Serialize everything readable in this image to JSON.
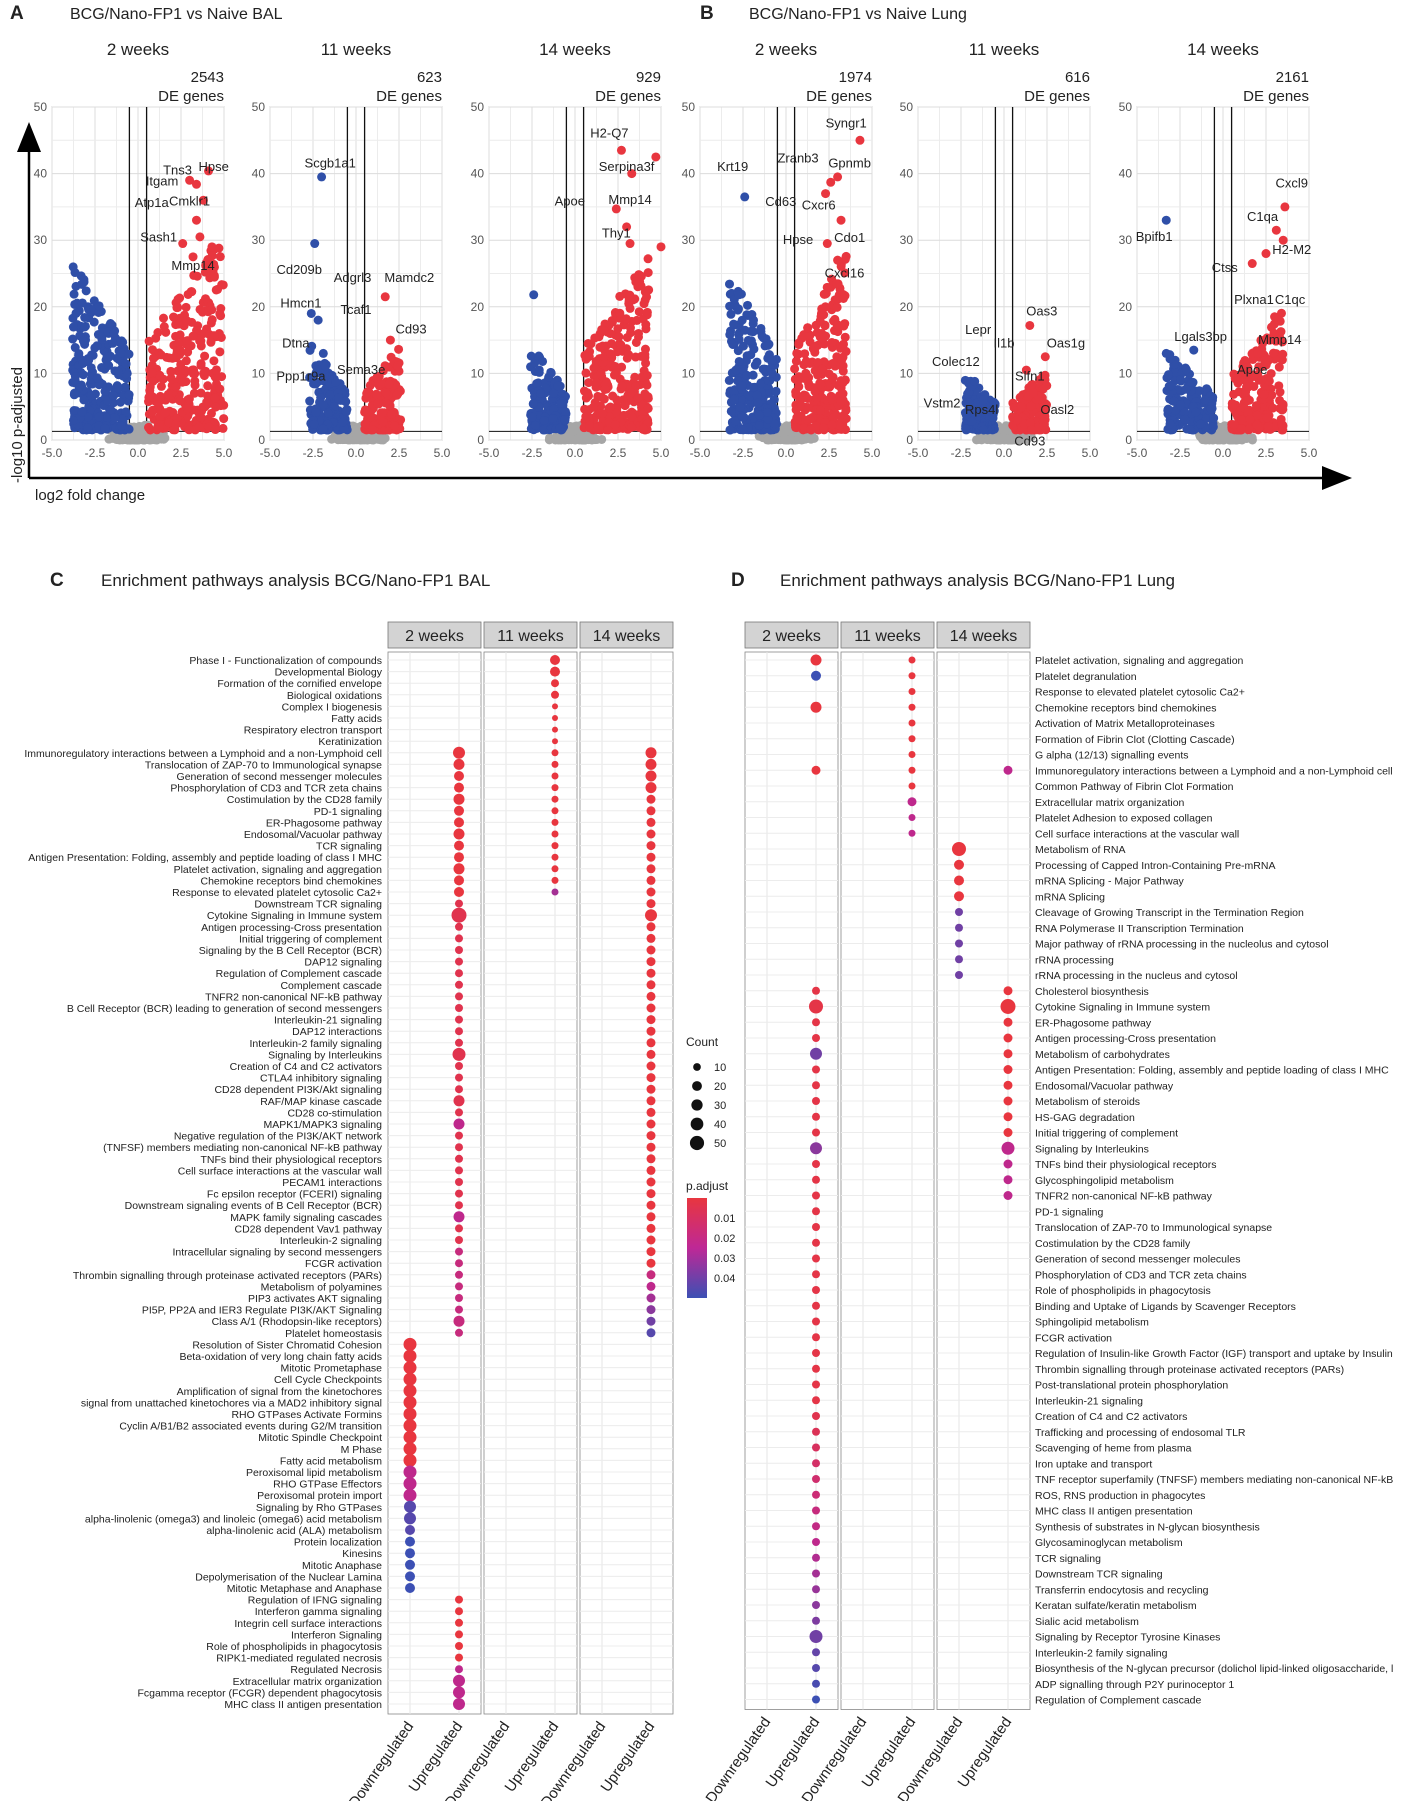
{
  "panels": {
    "A": {
      "letter": "A",
      "title": "BCG/Nano-FP1 vs Naive BAL"
    },
    "B": {
      "letter": "B",
      "title": "BCG/Nano-FP1 vs Naive Lung"
    },
    "C": {
      "letter": "C",
      "title": "Enrichment pathways analysis BCG/Nano-FP1 BAL"
    },
    "D": {
      "letter": "D",
      "title": "Enrichment pathways analysis BCG/Nano-FP1 Lung"
    }
  },
  "axes": {
    "x_label": "log2 fold change",
    "y_label": "-log10 p-adjusted",
    "de_suffix": "DE genes"
  },
  "colors": {
    "up": "#e8363f",
    "down": "#2f4fa8",
    "ns": "#a6a6a6",
    "strip": "#d3d3d3"
  },
  "chart_data": [
    {
      "type": "scatter",
      "id": "A1",
      "group": "A",
      "facet": "2 weeks",
      "de": "2543",
      "xlim": [
        -5,
        5
      ],
      "ylim": [
        0,
        50
      ],
      "xticks": [
        "-5.0",
        "-2.5",
        "0.0",
        "2.5",
        "5.0"
      ],
      "yticks": [
        "0",
        "10",
        "20",
        "30",
        "40",
        "50"
      ],
      "labels": [
        {
          "t": "Tns3",
          "x": 2.3,
          "y": 40.5
        },
        {
          "t": "Hpse",
          "x": 4.4,
          "y": 41
        },
        {
          "t": "Itgam",
          "x": 1.4,
          "y": 38.8
        },
        {
          "t": "Atp1a",
          "x": 0.8,
          "y": 35.6
        },
        {
          "t": "Cmklr1",
          "x": 3.0,
          "y": 35.8
        },
        {
          "t": "Sash1",
          "x": 1.2,
          "y": 30.4
        },
        {
          "t": "Mmp14",
          "x": 3.2,
          "y": 26.1
        }
      ],
      "pts": [
        [
          3.0,
          39
        ],
        [
          3.4,
          38.4
        ],
        [
          4.1,
          40.4
        ],
        [
          3.8,
          36
        ],
        [
          3.4,
          33
        ],
        [
          3.6,
          30.5
        ],
        [
          4.3,
          29
        ],
        [
          3.2,
          27.5
        ],
        [
          2.6,
          29.5
        ]
      ],
      "up": {
        "xr": [
          0.6,
          5
        ],
        "ymax": 30
      },
      "down": {
        "xr": [
          -3.8,
          -0.5
        ],
        "ymax": 26
      }
    },
    {
      "type": "scatter",
      "id": "A2",
      "group": "A",
      "facet": "11 weeks",
      "de": "623",
      "xlim": [
        -5,
        5
      ],
      "ylim": [
        0,
        50
      ],
      "xticks": [
        "-5.0",
        "-2.5",
        "0.0",
        "2.5",
        "5.0"
      ],
      "yticks": [
        "0",
        "10",
        "20",
        "30",
        "40",
        "50"
      ],
      "labels": [
        {
          "t": "Scgb1a1",
          "x": -1.5,
          "y": 41.5
        },
        {
          "t": "Cd209b",
          "x": -3.3,
          "y": 25.5
        },
        {
          "t": "Adgrl3",
          "x": -0.2,
          "y": 24.3
        },
        {
          "t": "Mamdc2",
          "x": 3.1,
          "y": 24.3
        },
        {
          "t": "Hmcn1",
          "x": -3.2,
          "y": 20.5
        },
        {
          "t": "Tcaf1",
          "x": 0.0,
          "y": 19.5
        },
        {
          "t": "Cd93",
          "x": 3.2,
          "y": 16.6
        },
        {
          "t": "Dtna",
          "x": -3.5,
          "y": 14.5
        },
        {
          "t": "Sema3e",
          "x": 0.3,
          "y": 10.5
        },
        {
          "t": "Ppp1r9a",
          "x": -3.2,
          "y": 9.5
        }
      ],
      "pts": [
        [
          -2.0,
          39.5
        ],
        [
          -2.4,
          29.5
        ],
        [
          1.7,
          21.5
        ],
        [
          -2.6,
          19
        ],
        [
          2.0,
          15
        ],
        [
          -2.2,
          18
        ],
        [
          -1.9,
          13
        ]
      ],
      "up": {
        "xr": [
          0.5,
          2.6
        ],
        "ymax": 13
      },
      "down": {
        "xr": [
          -2.7,
          -0.5
        ],
        "ymax": 13
      }
    },
    {
      "type": "scatter",
      "id": "A3",
      "group": "A",
      "facet": "14 weeks",
      "de": "929",
      "xlim": [
        -5,
        5
      ],
      "ylim": [
        0,
        50
      ],
      "xticks": [
        "-5.0",
        "-2.5",
        "0.0",
        "2.5",
        "5.0"
      ],
      "yticks": [
        "0",
        "10",
        "20",
        "30",
        "40",
        "50"
      ],
      "labels": [
        {
          "t": "H2-Q7",
          "x": 2.0,
          "y": 46
        },
        {
          "t": "Serpina3f",
          "x": 3.0,
          "y": 41
        },
        {
          "t": "Apoe",
          "x": -0.3,
          "y": 35.8
        },
        {
          "t": "Mmp14",
          "x": 3.2,
          "y": 36
        },
        {
          "t": "Thy1",
          "x": 2.4,
          "y": 31
        }
      ],
      "pts": [
        [
          2.7,
          43.5
        ],
        [
          4.7,
          42.5
        ],
        [
          3.3,
          40
        ],
        [
          2.4,
          34.7
        ],
        [
          3.0,
          32
        ],
        [
          3.2,
          29.5
        ],
        [
          5.0,
          29
        ],
        [
          -2.4,
          21.8
        ]
      ],
      "up": {
        "xr": [
          0.5,
          4.3
        ],
        "ymax": 27
      },
      "down": {
        "xr": [
          -2.6,
          -0.5
        ],
        "ymax": 13
      }
    },
    {
      "type": "scatter",
      "id": "B1",
      "group": "B",
      "facet": "2 weeks",
      "de": "1974",
      "xlim": [
        -5,
        5
      ],
      "ylim": [
        0,
        50
      ],
      "xticks": [
        "-5.0",
        "-2.5",
        "0.0",
        "2.5",
        "5.0"
      ],
      "yticks": [
        "0",
        "10",
        "20",
        "30",
        "40",
        "50"
      ],
      "labels": [
        {
          "t": "Syngr1",
          "x": 3.5,
          "y": 47.5
        },
        {
          "t": "Krt19",
          "x": -3.1,
          "y": 41
        },
        {
          "t": "Zranb3",
          "x": 0.7,
          "y": 42.3
        },
        {
          "t": "Gpnmb",
          "x": 3.7,
          "y": 41.5
        },
        {
          "t": "Cd63",
          "x": -0.3,
          "y": 35.7
        },
        {
          "t": "Cxcr6",
          "x": 1.9,
          "y": 35.2
        },
        {
          "t": "Hpse",
          "x": 0.7,
          "y": 30
        },
        {
          "t": "Cdo1",
          "x": 3.7,
          "y": 30.3
        },
        {
          "t": "Cxcl16",
          "x": 3.4,
          "y": 25
        }
      ],
      "pts": [
        [
          4.3,
          45
        ],
        [
          -2.4,
          36.5
        ],
        [
          2.6,
          38.7
        ],
        [
          3.0,
          39.5
        ],
        [
          2.3,
          37
        ],
        [
          3.2,
          33
        ],
        [
          2.4,
          29.5
        ],
        [
          3.0,
          27
        ]
      ],
      "up": {
        "xr": [
          0.5,
          3.5
        ],
        "ymax": 27
      },
      "down": {
        "xr": [
          -3.3,
          -0.5
        ],
        "ymax": 24
      }
    },
    {
      "type": "scatter",
      "id": "B2",
      "group": "B",
      "facet": "11 weeks",
      "de": "616",
      "xlim": [
        -5,
        5
      ],
      "ylim": [
        0,
        50
      ],
      "xticks": [
        "-5.0",
        "-2.5",
        "0.0",
        "2.5",
        "5.0"
      ],
      "yticks": [
        "0",
        "10",
        "20",
        "30",
        "40",
        "50"
      ],
      "labels": [
        {
          "t": "Oas3",
          "x": 2.2,
          "y": 19.3
        },
        {
          "t": "Lepr",
          "x": -1.5,
          "y": 16.5
        },
        {
          "t": "Il1b",
          "x": 0.0,
          "y": 14.5
        },
        {
          "t": "Oas1g",
          "x": 3.6,
          "y": 14.5
        },
        {
          "t": "Colec12",
          "x": -2.8,
          "y": 11.7
        },
        {
          "t": "Slfn1",
          "x": 1.5,
          "y": 9.5
        },
        {
          "t": "Vstm2",
          "x": -3.6,
          "y": 5.5
        },
        {
          "t": "Rps4l",
          "x": -1.3,
          "y": 4.5
        },
        {
          "t": "Oasl2",
          "x": 3.1,
          "y": 4.5
        },
        {
          "t": "Cd93",
          "x": 1.5,
          "y": -0.2
        }
      ],
      "pts": [
        [
          1.5,
          17.2
        ],
        [
          2.4,
          12.5
        ],
        [
          1.3,
          10.5
        ],
        [
          -1.7,
          8.8
        ],
        [
          -1.2,
          6
        ],
        [
          2.3,
          5
        ],
        [
          -1.7,
          4
        ],
        [
          1.6,
          1.5
        ]
      ],
      "up": {
        "xr": [
          0.5,
          2.5
        ],
        "ymax": 9
      },
      "down": {
        "xr": [
          -2.3,
          -0.5
        ],
        "ymax": 9
      }
    },
    {
      "type": "scatter",
      "id": "B3",
      "group": "B",
      "facet": "14 weeks",
      "de": "2161",
      "xlim": [
        -5,
        5
      ],
      "ylim": [
        0,
        50
      ],
      "xticks": [
        "-5.0",
        "-2.5",
        "0.0",
        "2.5",
        "5.0"
      ],
      "yticks": [
        "0",
        "10",
        "20",
        "30",
        "40",
        "50"
      ],
      "labels": [
        {
          "t": "Cxcl9",
          "x": 4.0,
          "y": 38.5
        },
        {
          "t": "Bpifb1",
          "x": -4.0,
          "y": 30.5
        },
        {
          "t": "C1qa",
          "x": 2.3,
          "y": 33.5
        },
        {
          "t": "H2-M2",
          "x": 4.0,
          "y": 28.5
        },
        {
          "t": "Ctss",
          "x": 0.1,
          "y": 25.8
        },
        {
          "t": "Plxna1",
          "x": 1.8,
          "y": 21
        },
        {
          "t": "C1qc",
          "x": 3.9,
          "y": 21
        },
        {
          "t": "Lgals3bp",
          "x": -1.3,
          "y": 15.5
        },
        {
          "t": "Mmp14",
          "x": 3.3,
          "y": 15
        },
        {
          "t": "Apoe",
          "x": 1.7,
          "y": 10.5
        }
      ],
      "pts": [
        [
          3.6,
          35
        ],
        [
          -3.3,
          33
        ],
        [
          3.1,
          31.5
        ],
        [
          3.5,
          30
        ],
        [
          1.7,
          26.5
        ],
        [
          2.5,
          28
        ],
        [
          -3.3,
          13
        ],
        [
          -1.7,
          13.5
        ],
        [
          3.0,
          18.5
        ],
        [
          2.3,
          14.5
        ],
        [
          2.0,
          13
        ]
      ],
      "up": {
        "xr": [
          0.5,
          3.5
        ],
        "ymax": 18
      },
      "down": {
        "xr": [
          -3.3,
          -0.5
        ],
        "ymax": 12
      }
    },
    {
      "type": "dot",
      "id": "C",
      "facets": [
        "2 weeks",
        "11 weeks",
        "14 weeks"
      ],
      "x_categories": [
        "Downregulated",
        "Upregulated"
      ],
      "rows": [
        "Phase I - Functionalization of compounds",
        "Developmental Biology",
        "Formation of the cornified envelope",
        "Biological oxidations",
        "Complex I biogenesis",
        "Fatty acids",
        "Respiratory electron transport",
        "Keratinization",
        "Immunoregulatory interactions between a Lymphoid and a non-Lymphoid cell",
        "Translocation of ZAP-70 to Immunological synapse",
        "Generation of second messenger molecules",
        "Phosphorylation of CD3 and TCR zeta chains",
        "Costimulation by the CD28 family",
        "PD-1 signaling",
        "ER-Phagosome pathway",
        "Endosomal/Vacuolar pathway",
        "TCR signaling",
        "Antigen Presentation: Folding, assembly and peptide loading of class I MHC",
        "Platelet activation, signaling and aggregation",
        "Chemokine receptors bind chemokines",
        "Response to elevated platelet cytosolic Ca2+",
        "Downstream TCR signaling",
        "Cytokine Signaling in Immune system",
        "Antigen processing-Cross presentation",
        "Initial triggering of complement",
        "Signaling by the B Cell Receptor (BCR)",
        "DAP12 signaling",
        "Regulation of Complement cascade",
        "Complement cascade",
        "TNFR2 non-canonical NF-kB pathway",
        "B Cell Receptor (BCR) leading to generation of second messengers",
        "Interleukin-21 signaling",
        "DAP12 interactions",
        "Interleukin-2 family signaling",
        "Signaling by Interleukins",
        "Creation of C4 and C2 activators",
        "CTLA4 inhibitory signaling",
        "CD28 dependent PI3K/Akt signaling",
        "RAF/MAP kinase cascade",
        "CD28 co-stimulation",
        "MAPK1/MAPK3 signaling",
        "Negative regulation of the PI3K/AKT network",
        "(TNFSF) members mediating non-canonical NF-kB pathway",
        "TNFs bind their physiological receptors",
        "Cell surface interactions at the vascular wall",
        "PECAM1 interactions",
        "Fc epsilon receptor (FCERI) signaling",
        "Downstream signaling events of B Cell Receptor (BCR)",
        "MAPK family signaling cascades",
        "CD28 dependent Vav1 pathway",
        "Interleukin-2 signaling",
        "Intracellular signaling by second messengers",
        "FCGR activation",
        "Thrombin signalling through proteinase activated receptors (PARs)",
        "Metabolism of polyamines",
        "PIP3 activates AKT signaling",
        "PI5P, PP2A and IER3 Regulate PI3K/AKT Signaling",
        "Class A/1 (Rhodopsin-like receptors)",
        "Platelet homeostasis",
        "Resolution of Sister Chromatid Cohesion",
        "Beta-oxidation of very long chain fatty acids",
        "Mitotic Prometaphase",
        "Cell Cycle Checkpoints",
        "Amplification of signal from the kinetochores",
        "signal from unattached  kinetochores via a MAD2  inhibitory signal",
        "RHO GTPases Activate Formins",
        "Cyclin A/B1/B2 associated events during G2/M transition",
        "Mitotic Spindle Checkpoint",
        "M Phase",
        "Fatty acid metabolism",
        "Peroxisomal lipid metabolism",
        "RHO GTPase Effectors",
        "Peroxisomal protein import",
        "Signaling by Rho GTPases",
        "alpha-linolenic (omega3) and linoleic (omega6) acid metabolism",
        "alpha-linolenic acid (ALA) metabolism",
        "Protein localization",
        "Kinesins",
        "Mitotic Anaphase",
        "Depolymerisation of the Nuclear Lamina",
        "Mitotic Metaphase and Anaphase",
        "Regulation of IFNG signaling",
        "Interferon gamma signaling",
        "Integrin cell surface interactions",
        "Interferon Signaling",
        "Role of phospholipids in phagocytosis",
        "RIPK1-mediated regulated necrosis",
        "Regulated Necrosis",
        "Extracellular matrix organization",
        "Fcgamma receptor (FCGR) dependent phagocytosis",
        "MHC class II antigen presentation"
      ]
    },
    {
      "type": "dot",
      "id": "D",
      "facets": [
        "2 weeks",
        "11 weeks",
        "14 weeks"
      ],
      "x_categories": [
        "Downregulated",
        "Upregulated"
      ],
      "rows": [
        "Platelet activation, signaling and aggregation",
        "Platelet degranulation",
        "Response to elevated platelet cytosolic Ca2+",
        "Chemokine receptors bind chemokines",
        "Activation of Matrix Metalloproteinases",
        "Formation of Fibrin Clot (Clotting Cascade)",
        "G alpha (12/13) signalling events",
        "Immunoregulatory interactions between a Lymphoid and a non-Lymphoid cell",
        "Common Pathway of Fibrin Clot Formation",
        "Extracellular matrix organization",
        "Platelet Adhesion to exposed collagen",
        "Cell surface interactions at the vascular wall",
        "Metabolism of RNA",
        "Processing of Capped Intron-Containing Pre-mRNA",
        "mRNA Splicing - Major Pathway",
        "mRNA Splicing",
        "Cleavage of Growing Transcript in the Termination Region",
        "RNA Polymerase II Transcription Termination",
        "Major pathway of rRNA processing in the nucleolus and cytosol",
        "rRNA processing",
        "rRNA processing in the nucleus and cytosol",
        "Cholesterol biosynthesis",
        "Cytokine Signaling in Immune system",
        "ER-Phagosome pathway",
        "Antigen processing-Cross presentation",
        "Metabolism of carbohydrates",
        "Antigen Presentation: Folding, assembly and peptide loading of class I MHC",
        "Endosomal/Vacuolar pathway",
        "Metabolism of steroids",
        "HS-GAG degradation",
        "Initial triggering of complement",
        "Signaling by Interleukins",
        "TNFs bind their physiological receptors",
        "Glycosphingolipid metabolism",
        "TNFR2 non-canonical NF-kB pathway",
        "PD-1 signaling",
        "Translocation of ZAP-70 to Immunological synapse",
        "Costimulation by the CD28 family",
        "Generation of second messenger molecules",
        "Phosphorylation of CD3 and TCR zeta chains",
        "Role of phospholipids in phagocytosis",
        "Binding and Uptake of Ligands by Scavenger Receptors",
        "Sphingolipid metabolism",
        "FCGR activation",
        "Regulation of Insulin-like Growth Factor (IGF) transport and uptake by Insulin",
        "Thrombin signalling through proteinase activated receptors (PARs)",
        "Post-translational protein phosphorylation",
        "Interleukin-21 signaling",
        "Creation of C4 and C2 activators",
        "Trafficking and processing of endosomal TLR",
        "Scavenging of heme from plasma",
        "Iron uptake and transport",
        "TNF receptor superfamily (TNFSF) members mediating non-canonical NF-kB",
        "ROS, RNS production in phagocytes",
        "MHC class II antigen presentation",
        "Synthesis of substrates in N-glycan biosynthesis",
        "Glycosaminoglycan metabolism",
        "TCR signaling",
        "Downstream TCR signaling",
        "Transferrin endocytosis and recycling",
        "Keratan sulfate/keratin metabolism",
        "Sialic acid metabolism",
        "Signaling by Receptor Tyrosine Kinases",
        "Interleukin-2 family signaling",
        "Biosynthesis of the N-glycan precursor (dolichol lipid-linked oligosaccharide, l",
        "ADP signalling through P2Y purinoceptor 1",
        "Regulation of Complement cascade"
      ]
    }
  ],
  "legend": {
    "count_title": "Count",
    "count_values": [
      "10",
      "20",
      "30",
      "40",
      "50"
    ],
    "padj_title": "p.adjust",
    "padj_values": [
      "0.01",
      "0.02",
      "0.03",
      "0.04"
    ]
  }
}
